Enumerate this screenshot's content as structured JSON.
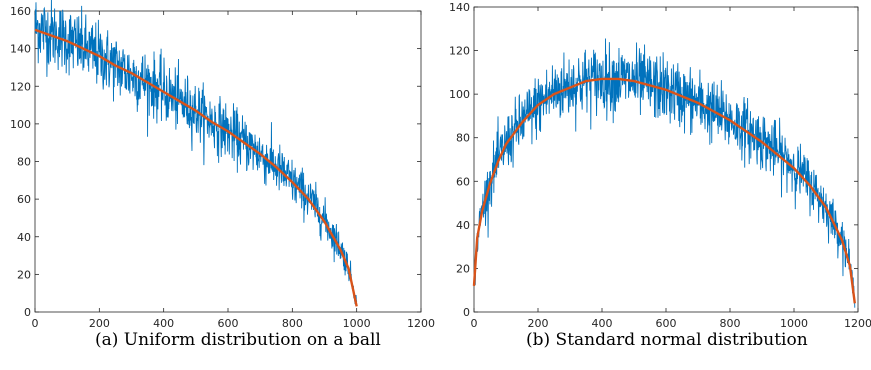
{
  "chart_data": [
    {
      "type": "line",
      "caption": "(a) Uniform distribution on a ball",
      "xlim": [
        0,
        1200
      ],
      "ylim": [
        0,
        160
      ],
      "xticks": [
        0,
        200,
        400,
        600,
        800,
        1000,
        1200
      ],
      "xtick_labels": [
        "0",
        "200",
        "400",
        "600",
        "800",
        "1000",
        "1200"
      ],
      "yticks": [
        0,
        20,
        40,
        60,
        80,
        100,
        120,
        140,
        160
      ],
      "ytick_labels": [
        "0",
        "20",
        "40",
        "60",
        "80",
        "100",
        "120",
        "140",
        "160"
      ],
      "grid": false,
      "series": [
        {
          "color": "#0072BD",
          "style": "noisy empirical histogram",
          "x": [
            0,
            50,
            100,
            150,
            200,
            250,
            300,
            350,
            400,
            450,
            500,
            550,
            600,
            650,
            700,
            750,
            800,
            850,
            900,
            950,
            975,
            1000
          ],
          "y": [
            152,
            148,
            145,
            140,
            136,
            131,
            126,
            122,
            117,
            112,
            107,
            101,
            96,
            90,
            84,
            77,
            69,
            61,
            49,
            34,
            24,
            5
          ]
        },
        {
          "color": "#D95319",
          "style": "smooth theoretical curve",
          "x": [
            0,
            50,
            100,
            150,
            200,
            250,
            300,
            350,
            400,
            450,
            500,
            550,
            600,
            650,
            700,
            750,
            800,
            850,
            900,
            950,
            975,
            1000
          ],
          "y": [
            150,
            147,
            144,
            140,
            136,
            131,
            127,
            122,
            117,
            112,
            107,
            101,
            96,
            90,
            84,
            77,
            69,
            60,
            48,
            33,
            23,
            3
          ]
        }
      ]
    },
    {
      "type": "line",
      "caption": "(b) Standard normal distribution",
      "xlim": [
        0,
        1200
      ],
      "ylim": [
        0,
        140
      ],
      "xticks": [
        0,
        200,
        400,
        600,
        800,
        1000,
        1200
      ],
      "xtick_labels": [
        "0",
        "200",
        "400",
        "600",
        "800",
        "1000",
        "1200"
      ],
      "yticks": [
        0,
        20,
        40,
        60,
        80,
        100,
        120,
        140
      ],
      "ytick_labels": [
        "0",
        "20",
        "40",
        "60",
        "80",
        "100",
        "120",
        "140"
      ],
      "grid": false,
      "series": [
        {
          "color": "#0072BD",
          "style": "noisy empirical histogram",
          "x": [
            0,
            10,
            25,
            50,
            75,
            100,
            150,
            200,
            250,
            300,
            350,
            400,
            450,
            500,
            550,
            600,
            650,
            700,
            750,
            800,
            850,
            900,
            950,
            1000,
            1050,
            1100,
            1150,
            1175,
            1190
          ],
          "y": [
            10,
            33,
            47,
            60,
            70,
            77,
            87,
            95,
            101,
            104,
            106,
            107,
            107,
            106,
            104,
            102,
            99,
            96,
            92,
            88,
            84,
            79,
            73,
            67,
            59,
            48,
            34,
            22,
            6
          ]
        },
        {
          "color": "#D95319",
          "style": "smooth theoretical curve",
          "x": [
            0,
            10,
            25,
            50,
            75,
            100,
            150,
            200,
            250,
            300,
            350,
            400,
            450,
            500,
            550,
            600,
            650,
            700,
            750,
            800,
            850,
            900,
            950,
            1000,
            1050,
            1100,
            1150,
            1175,
            1190
          ],
          "y": [
            12,
            34,
            46,
            59,
            69,
            77,
            87,
            95,
            100,
            103,
            106,
            107,
            107,
            106,
            104,
            102,
            99,
            96,
            92,
            88,
            83,
            78,
            72,
            66,
            58,
            48,
            33,
            21,
            4
          ]
        }
      ]
    }
  ]
}
